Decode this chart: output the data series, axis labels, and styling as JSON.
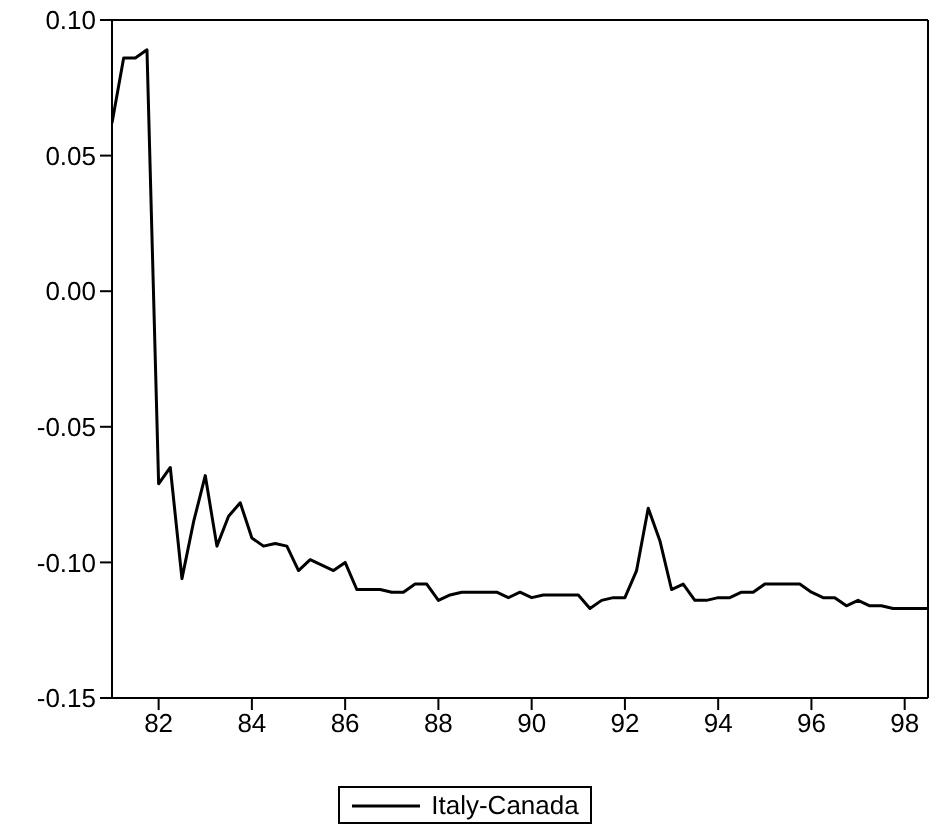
{
  "chart_data": {
    "type": "line",
    "x": [
      81,
      81.25,
      81.5,
      81.75,
      82,
      82.25,
      82.5,
      82.75,
      83,
      83.25,
      83.5,
      83.75,
      84,
      84.25,
      84.5,
      84.75,
      85,
      85.25,
      85.5,
      85.75,
      86,
      86.25,
      86.5,
      86.75,
      87,
      87.25,
      87.5,
      87.75,
      88,
      88.25,
      88.5,
      88.75,
      89,
      89.25,
      89.5,
      89.75,
      90,
      90.25,
      90.5,
      90.75,
      91,
      91.25,
      91.5,
      91.75,
      92,
      92.25,
      92.5,
      92.75,
      93,
      93.25,
      93.5,
      93.75,
      94,
      94.25,
      94.5,
      94.75,
      95,
      95.25,
      95.5,
      95.75,
      96,
      96.25,
      96.5,
      96.75,
      97,
      97.25,
      97.5,
      97.75,
      98,
      98.25,
      98.5
    ],
    "series": [
      {
        "name": "Italy-Canada",
        "color": "#000000",
        "values": [
          0.062,
          0.086,
          0.086,
          0.089,
          -0.071,
          -0.065,
          -0.106,
          -0.085,
          -0.068,
          -0.094,
          -0.083,
          -0.078,
          -0.091,
          -0.094,
          -0.093,
          -0.094,
          -0.103,
          -0.099,
          -0.101,
          -0.103,
          -0.1,
          -0.11,
          -0.11,
          -0.11,
          -0.111,
          -0.111,
          -0.108,
          -0.108,
          -0.114,
          -0.112,
          -0.111,
          -0.111,
          -0.111,
          -0.111,
          -0.113,
          -0.111,
          -0.113,
          -0.112,
          -0.112,
          -0.112,
          -0.112,
          -0.117,
          -0.114,
          -0.113,
          -0.113,
          -0.103,
          -0.08,
          -0.092,
          -0.11,
          -0.108,
          -0.114,
          -0.114,
          -0.113,
          -0.113,
          -0.111,
          -0.111,
          -0.108,
          -0.108,
          -0.108,
          -0.108,
          -0.111,
          -0.113,
          -0.113,
          -0.116,
          -0.114,
          -0.116,
          -0.116,
          -0.117,
          -0.117,
          -0.117,
          -0.117
        ]
      }
    ],
    "xlim": [
      81,
      98.5
    ],
    "xticks": [
      82,
      84,
      86,
      88,
      90,
      92,
      94,
      96,
      98
    ],
    "ylim": [
      -0.15,
      0.1
    ],
    "yticks": [
      {
        "value": -0.15,
        "label": "-0.15"
      },
      {
        "value": -0.1,
        "label": "-0.10"
      },
      {
        "value": -0.05,
        "label": "-0.05"
      },
      {
        "value": 0,
        "label": "0.00"
      },
      {
        "value": 0.05,
        "label": "0.05"
      },
      {
        "value": 0.1,
        "label": "0.10"
      }
    ],
    "legend": "bottom"
  }
}
